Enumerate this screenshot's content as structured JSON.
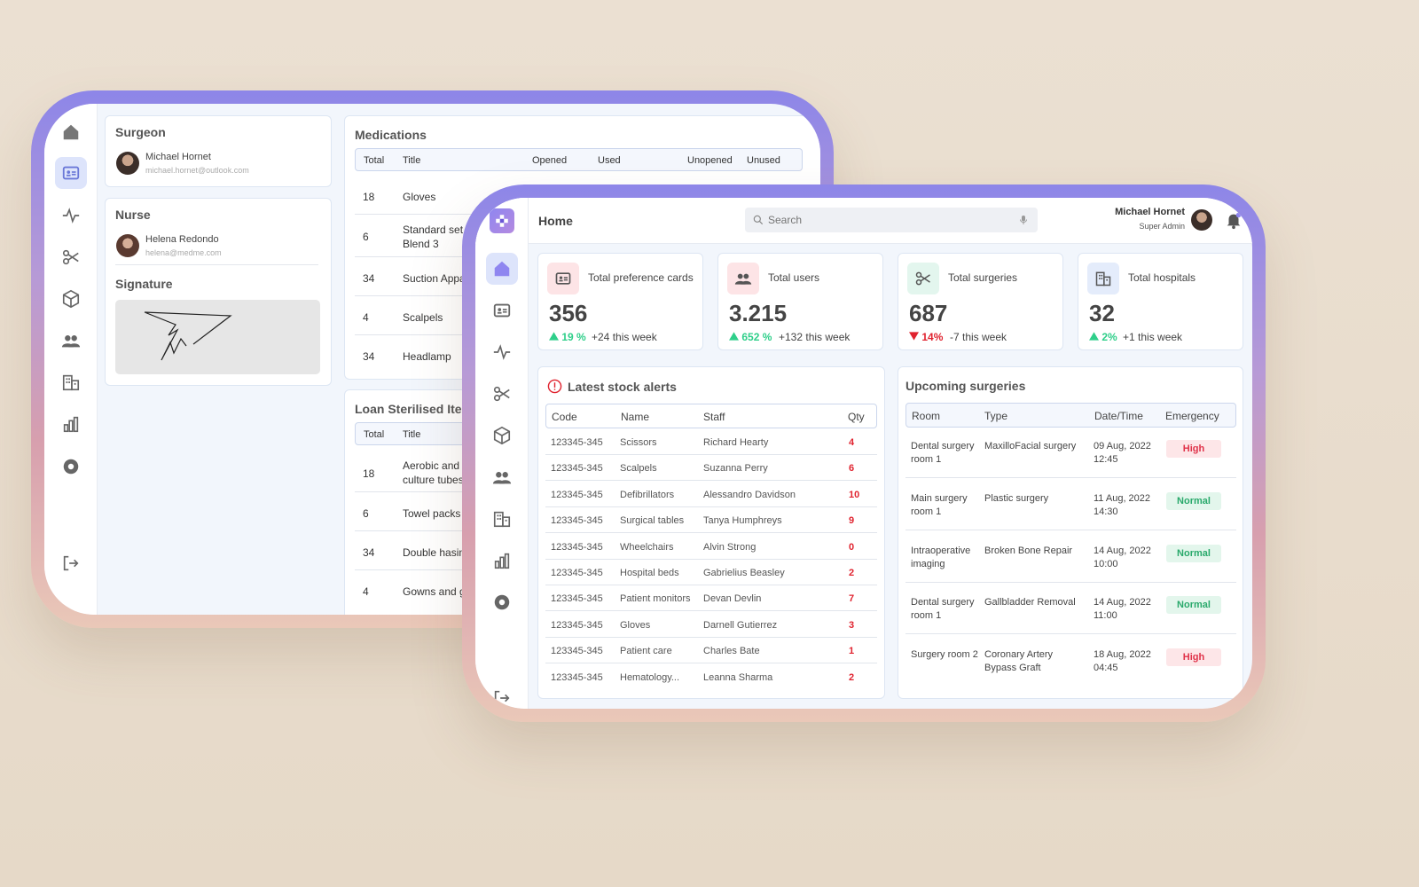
{
  "back": {
    "surgeon": {
      "heading": "Surgeon",
      "name": "Michael Hornet",
      "email": "michael.hornet@outlook.com"
    },
    "nurse": {
      "heading": "Nurse",
      "name": "Helena Redondo",
      "email": "helena@medme.com"
    },
    "signature_heading": "Signature",
    "medications": {
      "title": "Medications",
      "headers": [
        "Total",
        "Title",
        "Opened",
        "Used",
        "Unopened",
        "Unused"
      ],
      "rows": [
        {
          "total": "18",
          "title": "Gloves"
        },
        {
          "total": "6",
          "title": "Standard set Blend 3"
        },
        {
          "total": "34",
          "title": "Suction Appa"
        },
        {
          "total": "4",
          "title": "Scalpels"
        },
        {
          "total": "34",
          "title": "Headlamp"
        }
      ]
    },
    "loan": {
      "title": "Loan Sterilised Items",
      "headers": [
        "Total",
        "Title"
      ],
      "rows": [
        {
          "total": "18",
          "title": "Aerobic and an culture tubes"
        },
        {
          "total": "6",
          "title": "Towel packs"
        },
        {
          "total": "34",
          "title": "Double hasin s"
        },
        {
          "total": "4",
          "title": "Gowns and glo"
        }
      ]
    }
  },
  "front": {
    "header": {
      "title": "Home",
      "search_placeholder": "Search",
      "user_name": "Michael Hornet",
      "user_role": "Super Admin"
    },
    "stats": [
      {
        "label": "Total preference cards",
        "value": "356",
        "pct": "19 %",
        "trend": "up",
        "week": "+24 this week",
        "icon_bg": "#fde4e6",
        "icon": "id-card-icon"
      },
      {
        "label": "Total users",
        "value": "3.215",
        "pct": "652 %",
        "trend": "up",
        "week": "+132 this week",
        "icon_bg": "#fde4e6",
        "icon": "users-icon"
      },
      {
        "label": "Total surgeries",
        "value": "687",
        "pct": "14%",
        "trend": "down",
        "week": "-7 this week",
        "icon_bg": "#e3f6ee",
        "icon": "scissors-icon"
      },
      {
        "label": "Total hospitals",
        "value": "32",
        "pct": "2%",
        "trend": "up",
        "week": "+1 this week",
        "icon_bg": "#e4ecfb",
        "icon": "building-icon"
      }
    ],
    "stock": {
      "title": "Latest stock alerts",
      "headers": [
        "Code",
        "Name",
        "Staff",
        "Qty"
      ],
      "rows": [
        {
          "code": "123345-345",
          "name": "Scissors",
          "staff": "Richard Hearty",
          "qty": "4"
        },
        {
          "code": "123345-345",
          "name": "Scalpels",
          "staff": "Suzanna Perry",
          "qty": "6"
        },
        {
          "code": "123345-345",
          "name": "Defibrillators",
          "staff": "Alessandro Davidson",
          "qty": "10"
        },
        {
          "code": "123345-345",
          "name": "Surgical tables",
          "staff": "Tanya Humphreys",
          "qty": "9"
        },
        {
          "code": "123345-345",
          "name": "Wheelchairs",
          "staff": "Alvin Strong",
          "qty": "0"
        },
        {
          "code": "123345-345",
          "name": "Hospital beds",
          "staff": "Gabrielius Beasley",
          "qty": "2"
        },
        {
          "code": "123345-345",
          "name": "Patient monitors",
          "staff": "Devan Devlin",
          "qty": "7"
        },
        {
          "code": "123345-345",
          "name": "Gloves",
          "staff": "Darnell Gutierrez",
          "qty": "3"
        },
        {
          "code": "123345-345",
          "name": "Patient care",
          "staff": "Charles Bate",
          "qty": "1"
        },
        {
          "code": "123345-345",
          "name": "Hematology...",
          "staff": "Leanna Sharma",
          "qty": "2"
        }
      ]
    },
    "upcoming": {
      "title": "Upcoming surgeries",
      "headers": [
        "Room",
        "Type",
        "Date/Time",
        "Emergency"
      ],
      "rows": [
        {
          "room": "Dental surgery room 1",
          "type": "MaxilloFacial surgery",
          "date": "09 Aug, 2022",
          "time": "12:45",
          "emergency": "High"
        },
        {
          "room": "Main surgery room 1",
          "type": "Plastic surgery",
          "date": "11 Aug, 2022",
          "time": "14:30",
          "emergency": "Normal"
        },
        {
          "room": "Intraoperative imaging",
          "type": "Broken Bone Repair",
          "date": "14 Aug, 2022",
          "time": "10:00",
          "emergency": "Normal"
        },
        {
          "room": "Dental surgery room 1",
          "type": "Gallbladder Removal",
          "date": "14 Aug, 2022",
          "time": "11:00",
          "emergency": "Normal"
        },
        {
          "room": "Surgery room 2",
          "type": "Coronary Artery Bypass Graft",
          "date": "18 Aug, 2022",
          "time": "04:45",
          "emergency": "High"
        }
      ]
    }
  },
  "colors": {
    "accent": "#8f86f0",
    "qty_red": "#e0232f",
    "up_green": "#2fcf8a",
    "down_red": "#e0232f"
  }
}
